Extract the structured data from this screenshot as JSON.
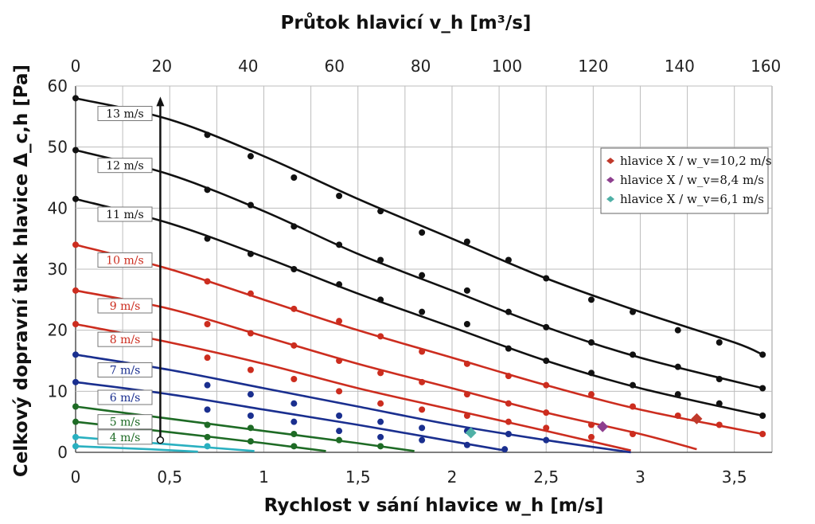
{
  "chart_data": {
    "type": "line",
    "title_top": "Průtok hlavicí  v_h [m³/s]",
    "xlabel": "Rychlost v sání hlavice  w_h [m/s]",
    "ylabel": "Celkový dopravní tlak hlavice  Δ_c,h [Pa]",
    "xlim": [
      0,
      3.7
    ],
    "ylim": [
      0,
      60
    ],
    "x_ticks": [
      "0",
      "0,5",
      "1",
      "1,5",
      "2",
      "2,5",
      "3",
      "3,5"
    ],
    "y_ticks": [
      "0",
      "10",
      "20",
      "30",
      "40",
      "50",
      "60"
    ],
    "x2_ticks": [
      "0",
      "20",
      "40",
      "60",
      "80",
      "100",
      "120",
      "140",
      "160"
    ],
    "grid": true,
    "legend_position": "right",
    "legend": [
      {
        "name": "hlavice X / w_v=10,2 m/s",
        "color": "#c0392b"
      },
      {
        "name": "hlavice X / w_v=8,4 m/s",
        "color": "#8e3f8f"
      },
      {
        "name": "hlavice X / w_v=6,1 m/s",
        "color": "#4fb0a6"
      }
    ],
    "series": [
      {
        "name": "13 m/s",
        "color": "#111111",
        "label_color": "#111111",
        "curve": {
          "x": [
            0,
            0.5,
            1.0,
            1.5,
            2.0,
            2.5,
            3.0,
            3.5,
            3.65
          ],
          "y": [
            58,
            54.5,
            48.5,
            41.5,
            35,
            28.5,
            23,
            18,
            16
          ]
        },
        "points": {
          "x": [
            0,
            0.7,
            0.93,
            1.16,
            1.4,
            1.62,
            1.84,
            2.08,
            2.3,
            2.5,
            2.74,
            2.96,
            3.2,
            3.42,
            3.65
          ],
          "y": [
            58,
            52,
            48.5,
            45,
            42,
            39.5,
            36,
            34.5,
            31.5,
            28.5,
            25,
            23,
            20,
            18,
            16
          ]
        }
      },
      {
        "name": "12 m/s",
        "color": "#111111",
        "label_color": "#111111",
        "curve": {
          "x": [
            0,
            0.5,
            1.0,
            1.5,
            2.0,
            2.5,
            3.0,
            3.65
          ],
          "y": [
            49.5,
            45.5,
            39.5,
            32.5,
            26.5,
            20.5,
            15.5,
            10.5
          ]
        },
        "points": {
          "x": [
            0,
            0.7,
            0.93,
            1.16,
            1.4,
            1.62,
            1.84,
            2.08,
            2.3,
            2.5,
            2.74,
            2.96,
            3.2,
            3.42,
            3.65
          ],
          "y": [
            49.5,
            43,
            40.5,
            37,
            34,
            31.5,
            29,
            26.5,
            23,
            20.5,
            18,
            16,
            14,
            12,
            10.5
          ]
        }
      },
      {
        "name": "11 m/s",
        "color": "#111111",
        "label_color": "#111111",
        "curve": {
          "x": [
            0,
            0.5,
            1.0,
            1.5,
            2.0,
            2.5,
            3.0,
            3.65
          ],
          "y": [
            41.5,
            37.5,
            32,
            26,
            20.5,
            15,
            10.5,
            6
          ]
        },
        "points": {
          "x": [
            0,
            0.7,
            0.93,
            1.16,
            1.4,
            1.62,
            1.84,
            2.08,
            2.3,
            2.5,
            2.74,
            2.96,
            3.2,
            3.42,
            3.65
          ],
          "y": [
            41.5,
            35,
            32.5,
            30,
            27.5,
            25,
            23,
            21,
            17,
            15,
            13,
            11,
            9.5,
            8,
            6
          ]
        }
      },
      {
        "name": "10 m/s",
        "color": "#cc2d1f",
        "label_color": "#cc2d1f",
        "curve": {
          "x": [
            0,
            0.5,
            1.0,
            1.5,
            2.0,
            2.5,
            3.0,
            3.65
          ],
          "y": [
            34,
            30,
            25,
            20,
            15.5,
            11,
            7,
            3
          ]
        },
        "points": {
          "x": [
            0,
            0.7,
            0.93,
            1.16,
            1.4,
            1.62,
            1.84,
            2.08,
            2.3,
            2.5,
            2.74,
            2.96,
            3.2,
            3.42,
            3.65
          ],
          "y": [
            34,
            28,
            26,
            23.5,
            21.5,
            19,
            16.5,
            14.5,
            12.5,
            11,
            9.5,
            7.5,
            6,
            4.5,
            3
          ]
        }
      },
      {
        "name": "9 m/s",
        "color": "#cc2d1f",
        "label_color": "#cc2d1f",
        "curve": {
          "x": [
            0,
            0.5,
            1.0,
            1.5,
            2.0,
            2.5,
            3.0,
            3.3
          ],
          "y": [
            26.5,
            23.5,
            19,
            14.5,
            10.5,
            6.5,
            3,
            0.5
          ]
        },
        "points": {
          "x": [
            0,
            0.7,
            0.93,
            1.16,
            1.4,
            1.62,
            1.84,
            2.08,
            2.3,
            2.5,
            2.74,
            2.96
          ],
          "y": [
            26.5,
            21,
            19.5,
            17.5,
            15,
            13,
            11.5,
            9.5,
            8,
            6.5,
            4.5,
            3
          ]
        }
      },
      {
        "name": "8 m/s",
        "color": "#cc2d1f",
        "label_color": "#cc2d1f",
        "curve": {
          "x": [
            0,
            0.5,
            1.0,
            1.5,
            2.0,
            2.5,
            2.95
          ],
          "y": [
            21,
            18,
            14.5,
            10.5,
            7,
            3.5,
            0.3
          ]
        },
        "points": {
          "x": [
            0,
            0.7,
            0.93,
            1.16,
            1.4,
            1.62,
            1.84,
            2.08,
            2.3,
            2.5,
            2.74
          ],
          "y": [
            21,
            15.5,
            13.5,
            12,
            10,
            8,
            7,
            6,
            5,
            4,
            2.5
          ]
        }
      },
      {
        "name": "7 m/s",
        "color": "#1a2f8f",
        "label_color": "#1a2f8f",
        "curve": {
          "x": [
            0,
            0.5,
            1.0,
            1.5,
            2.0,
            2.5,
            2.95
          ],
          "y": [
            16,
            13.5,
            10.5,
            7.5,
            4.5,
            2,
            0
          ]
        },
        "points": {
          "x": [
            0,
            0.7,
            0.93,
            1.16,
            1.4,
            1.62,
            1.84,
            2.08,
            2.3,
            2.5
          ],
          "y": [
            16,
            11,
            9.5,
            8,
            6,
            5,
            4,
            3.5,
            3,
            2
          ]
        }
      },
      {
        "name": "6 m/s",
        "color": "#1a2f8f",
        "label_color": "#1a2f8f",
        "curve": {
          "x": [
            0,
            0.5,
            1.0,
            1.5,
            2.0,
            2.28
          ],
          "y": [
            11.5,
            9.5,
            7,
            4.5,
            1.8,
            0.3
          ]
        },
        "points": {
          "x": [
            0,
            0.7,
            0.93,
            1.16,
            1.4,
            1.62,
            1.84,
            2.08,
            2.28
          ],
          "y": [
            11.5,
            7,
            6,
            5,
            3.5,
            2.5,
            2,
            1.2,
            0.5
          ]
        }
      },
      {
        "name": "5 m/s",
        "color": "#1e6b25",
        "label_color": "#1e6b25",
        "curve": {
          "x": [
            0,
            0.5,
            1.0,
            1.5,
            1.8
          ],
          "y": [
            7.5,
            5.5,
            3.5,
            1.5,
            0.2
          ]
        },
        "points": {
          "x": [
            0,
            0.7,
            0.93,
            1.16,
            1.4,
            1.62
          ],
          "y": [
            7.5,
            4.5,
            4,
            3,
            2,
            1
          ]
        }
      },
      {
        "name": "4 m/s",
        "color": "#1e6b25",
        "label_color": "#1e6b25",
        "curve": {
          "x": [
            0,
            0.5,
            1.0,
            1.33
          ],
          "y": [
            5,
            3.3,
            1.5,
            0.2
          ]
        },
        "points": {
          "x": [
            0,
            0.7,
            0.93,
            1.16
          ],
          "y": [
            5,
            2.5,
            1.8,
            1
          ]
        }
      },
      {
        "name": "",
        "color": "#2ab0c0",
        "label_color": "#2ab0c0",
        "curve": {
          "x": [
            0,
            0.5,
            0.95
          ],
          "y": [
            2.5,
            1.3,
            0.2
          ]
        },
        "points": {
          "x": [
            0,
            0.7
          ],
          "y": [
            2.5,
            1
          ]
        }
      },
      {
        "name": "",
        "color": "#2ab0c0",
        "label_color": "#2ab0c0",
        "curve": {
          "x": [
            0,
            0.4,
            0.65
          ],
          "y": [
            1,
            0.5,
            0.1
          ]
        },
        "points": {
          "x": [
            0
          ],
          "y": [
            1
          ]
        }
      }
    ],
    "markers": [
      {
        "series": "hlavice X / w_v=10,2 m/s",
        "x": 3.3,
        "y": 5.5,
        "color": "#c0392b"
      },
      {
        "series": "hlavice X / w_v=8,4 m/s",
        "x": 2.8,
        "y": 4.2,
        "color": "#8e3f8f"
      },
      {
        "series": "hlavice X / w_v=6,1 m/s",
        "x": 2.1,
        "y": 3.2,
        "color": "#4fb0a6"
      }
    ],
    "arrow": {
      "x": 0.45,
      "y_from": 2,
      "y_to": 58
    }
  }
}
